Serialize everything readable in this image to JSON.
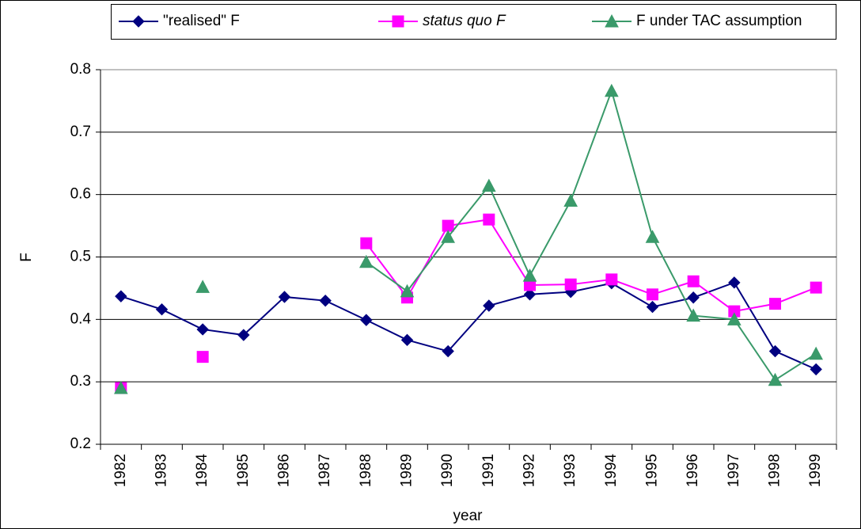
{
  "chart_data": {
    "type": "line",
    "categories": [
      "1982",
      "1983",
      "1984",
      "1985",
      "1986",
      "1987",
      "1988",
      "1989",
      "1990",
      "1991",
      "1992",
      "1993",
      "1994",
      "1995",
      "1996",
      "1997",
      "1998",
      "1999"
    ],
    "x_label": "year",
    "y_label": "F",
    "ylim": [
      0.2,
      0.8
    ],
    "yticks": [
      0.2,
      0.3,
      0.4,
      0.5,
      0.6,
      0.7,
      0.8
    ],
    "grid": true,
    "series": [
      {
        "name": "\"realised\" F",
        "color": "#000080",
        "marker": "diamond",
        "values": [
          0.437,
          0.416,
          0.384,
          0.375,
          0.436,
          0.43,
          0.399,
          0.367,
          0.349,
          0.422,
          0.44,
          0.444,
          0.458,
          0.42,
          0.435,
          0.459,
          0.349,
          0.32
        ]
      },
      {
        "name": "status quo F",
        "color": "#ff00ff",
        "marker": "square",
        "values": [
          0.29,
          null,
          0.34,
          null,
          null,
          null,
          0.522,
          0.435,
          0.55,
          0.56,
          0.455,
          0.456,
          0.464,
          0.44,
          0.461,
          0.413,
          0.425,
          0.451
        ]
      },
      {
        "name": "F under TAC assumption",
        "color": "#3a9a6a",
        "marker": "triangle",
        "values": [
          0.29,
          null,
          0.452,
          null,
          null,
          null,
          0.492,
          0.445,
          0.532,
          0.614,
          0.47,
          0.59,
          0.766,
          0.532,
          0.406,
          0.4,
          0.303,
          0.345
        ]
      }
    ]
  }
}
